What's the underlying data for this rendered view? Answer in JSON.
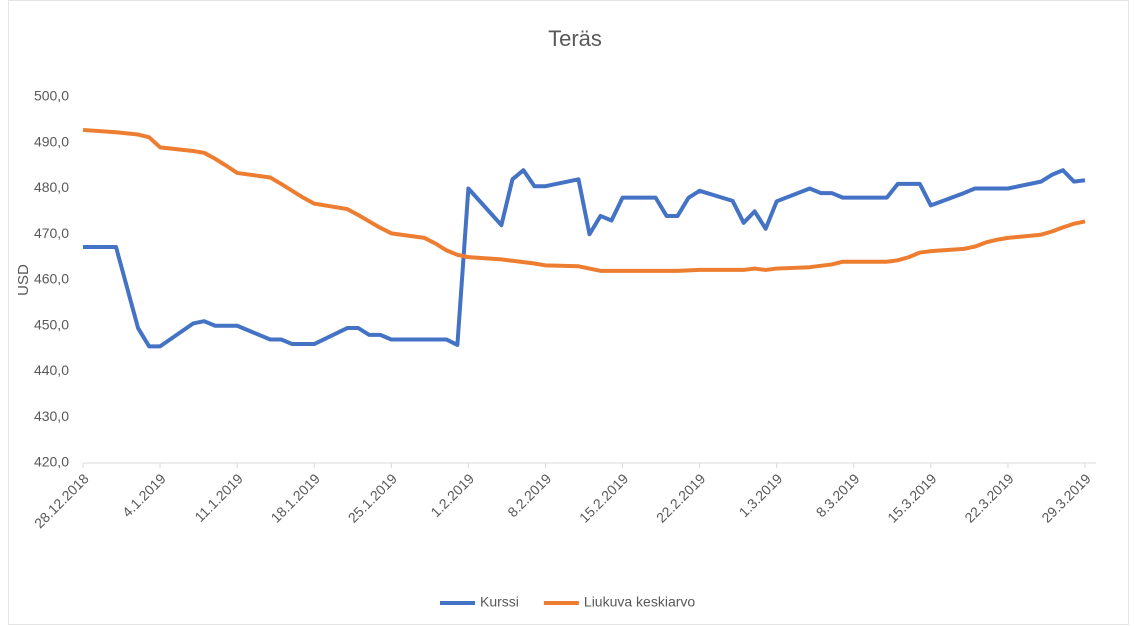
{
  "chart_data": {
    "type": "line",
    "title": "Teräs",
    "ylabel": "USD",
    "x": [
      "2018-12-28",
      "2018-12-31",
      "2019-01-02",
      "2019-01-03",
      "2019-01-04",
      "2019-01-07",
      "2019-01-08",
      "2019-01-09",
      "2019-01-10",
      "2019-01-11",
      "2019-01-14",
      "2019-01-15",
      "2019-01-16",
      "2019-01-17",
      "2019-01-18",
      "2019-01-21",
      "2019-01-22",
      "2019-01-23",
      "2019-01-24",
      "2019-01-25",
      "2019-01-28",
      "2019-01-29",
      "2019-01-30",
      "2019-01-31",
      "2019-02-01",
      "2019-02-04",
      "2019-02-05",
      "2019-02-06",
      "2019-02-07",
      "2019-02-08",
      "2019-02-11",
      "2019-02-12",
      "2019-02-13",
      "2019-02-14",
      "2019-02-15",
      "2019-02-18",
      "2019-02-19",
      "2019-02-20",
      "2019-02-21",
      "2019-02-22",
      "2019-02-25",
      "2019-02-26",
      "2019-02-27",
      "2019-02-28",
      "2019-03-01",
      "2019-03-04",
      "2019-03-05",
      "2019-03-06",
      "2019-03-07",
      "2019-03-08",
      "2019-03-11",
      "2019-03-12",
      "2019-03-13",
      "2019-03-14",
      "2019-03-15",
      "2019-03-18",
      "2019-03-19",
      "2019-03-20",
      "2019-03-21",
      "2019-03-22",
      "2019-03-25",
      "2019-03-26",
      "2019-03-27",
      "2019-03-28",
      "2019-03-29"
    ],
    "series": [
      {
        "name": "Kurssi",
        "color": "#4472c4",
        "values": [
          467.2,
          467.2,
          449.5,
          445.5,
          445.5,
          450.5,
          451,
          450,
          450,
          450,
          447,
          447,
          446,
          446,
          446,
          449.5,
          449.5,
          448,
          448,
          447,
          447,
          447,
          447,
          445.8,
          480,
          472,
          482,
          484,
          480.5,
          480.5,
          482,
          470,
          474,
          473,
          478,
          478,
          474,
          474,
          478,
          479.5,
          477.3,
          472.5,
          475,
          471.2,
          477.2,
          480,
          479,
          479,
          478,
          478,
          478,
          481,
          481,
          481,
          476.3,
          479,
          480,
          480,
          480,
          480,
          481.5,
          483,
          484,
          481.5,
          481.8
        ]
      },
      {
        "name": "Liukuva keskiarvo",
        "color": "#ed7d31",
        "values": [
          492.8,
          492.3,
          491.8,
          491.2,
          489,
          488.2,
          487.8,
          486.5,
          485,
          483.4,
          482.4,
          481,
          479.5,
          478,
          476.7,
          475.5,
          474.2,
          472.8,
          471.4,
          470.2,
          469.2,
          468,
          466.5,
          465.5,
          465,
          464.5,
          464.2,
          463.9,
          463.6,
          463.2,
          463,
          462.5,
          462,
          462,
          462,
          462,
          462,
          462,
          462.1,
          462.2,
          462.2,
          462.2,
          462.5,
          462.2,
          462.5,
          462.8,
          463.1,
          463.4,
          464,
          464,
          464,
          464.3,
          465,
          466,
          466.3,
          466.8,
          467.3,
          468.2,
          468.8,
          469.2,
          469.9,
          470.6,
          471.5,
          472.3,
          472.8
        ]
      }
    ],
    "xlim": [
      "2018-12-28",
      "2019-03-30"
    ],
    "xticks": [
      {
        "value": "2018-12-28",
        "label": "28.12.2018"
      },
      {
        "value": "2019-01-04",
        "label": "4.1.2019"
      },
      {
        "value": "2019-01-11",
        "label": "11.1.2019"
      },
      {
        "value": "2019-01-18",
        "label": "18.1.2019"
      },
      {
        "value": "2019-01-25",
        "label": "25.1.2019"
      },
      {
        "value": "2019-02-01",
        "label": "1.2.2019"
      },
      {
        "value": "2019-02-08",
        "label": "8.2.2019"
      },
      {
        "value": "2019-02-15",
        "label": "15.2.2019"
      },
      {
        "value": "2019-02-22",
        "label": "22.2.2019"
      },
      {
        "value": "2019-03-01",
        "label": "1.3.2019"
      },
      {
        "value": "2019-03-08",
        "label": "8.3.2019"
      },
      {
        "value": "2019-03-15",
        "label": "15.3.2019"
      },
      {
        "value": "2019-03-22",
        "label": "22.3.2019"
      },
      {
        "value": "2019-03-29",
        "label": "29.3.2019"
      }
    ],
    "ylim": [
      420,
      500
    ],
    "yticks": [
      {
        "value": 420,
        "label": "420,0"
      },
      {
        "value": 430,
        "label": "430,0"
      },
      {
        "value": 440,
        "label": "440,0"
      },
      {
        "value": 450,
        "label": "450,0"
      },
      {
        "value": 460,
        "label": "460,0"
      },
      {
        "value": 470,
        "label": "470,0"
      },
      {
        "value": 480,
        "label": "480,0"
      },
      {
        "value": 490,
        "label": "490,0"
      },
      {
        "value": 500,
        "label": "500,0"
      }
    ],
    "grid": false,
    "legend": "bottom"
  }
}
